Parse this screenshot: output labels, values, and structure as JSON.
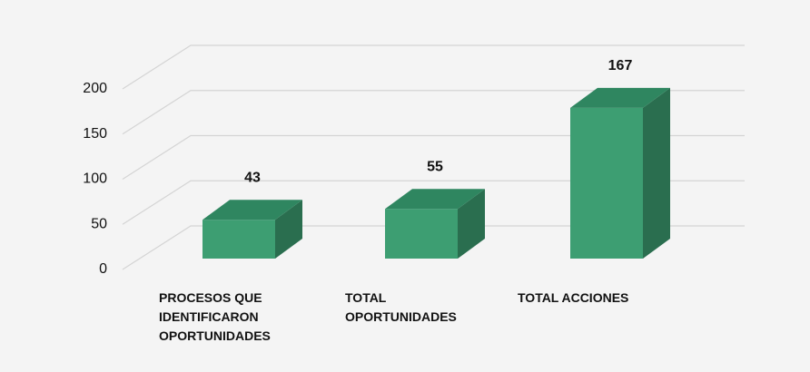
{
  "chart_data": {
    "type": "bar3d",
    "categories": [
      "PROCESOS QUE IDENTIFICARON OPORTUNIDADES",
      "TOTAL OPORTUNIDADES",
      "TOTAL ACCIONES"
    ],
    "values": [
      43,
      55,
      167
    ],
    "color": "#3d9e72",
    "ylim": [
      0,
      200
    ],
    "yticks": [
      0,
      50,
      100,
      150,
      200
    ],
    "grid": true
  }
}
